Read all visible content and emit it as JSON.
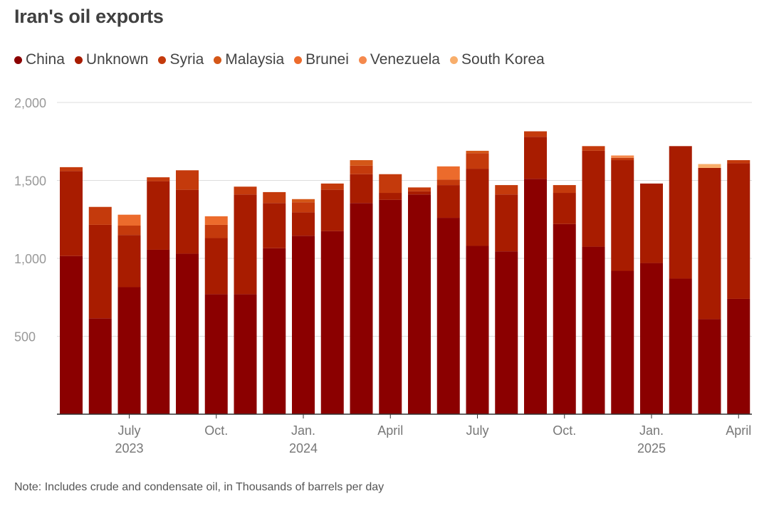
{
  "chart_data": {
    "type": "bar",
    "stacked": true,
    "title": "Iran's oil exports",
    "xlabel": "",
    "ylabel": "",
    "ylim": [
      0,
      2000
    ],
    "yticks": [
      500,
      1000,
      1500,
      2000
    ],
    "ytick_labels": [
      "500",
      "1,000",
      "1,500",
      "2,000"
    ],
    "grid": true,
    "legend_position": "top-left",
    "categories": [
      "2023-05",
      "2023-06",
      "2023-07",
      "2023-08",
      "2023-09",
      "2023-10",
      "2023-11",
      "2023-12",
      "2024-01",
      "2024-02",
      "2024-03",
      "2024-04",
      "2024-05",
      "2024-06",
      "2024-07",
      "2024-08",
      "2024-09",
      "2024-10",
      "2024-11",
      "2024-12",
      "2025-01",
      "2025-02",
      "2025-03",
      "2025-04"
    ],
    "x_tick_labels": [
      {
        "category_index": 2,
        "label": "July",
        "sub": "2023"
      },
      {
        "category_index": 5,
        "label": "Oct.",
        "sub": ""
      },
      {
        "category_index": 8,
        "label": "Jan.",
        "sub": "2024"
      },
      {
        "category_index": 11,
        "label": "April",
        "sub": ""
      },
      {
        "category_index": 14,
        "label": "July",
        "sub": ""
      },
      {
        "category_index": 17,
        "label": "Oct.",
        "sub": ""
      },
      {
        "category_index": 20,
        "label": "Jan.",
        "sub": "2025"
      },
      {
        "category_index": 23,
        "label": "April",
        "sub": ""
      }
    ],
    "series": [
      {
        "name": "China",
        "color": "#8b0000",
        "values": [
          1015,
          615,
          815,
          1055,
          1030,
          770,
          770,
          1065,
          1145,
          1175,
          1355,
          1375,
          1410,
          1260,
          1080,
          1045,
          1510,
          1220,
          1075,
          920,
          970,
          870,
          610,
          740
        ]
      },
      {
        "name": "Unknown",
        "color": "#a81c00",
        "values": [
          545,
          600,
          335,
          440,
          410,
          360,
          640,
          290,
          150,
          265,
          185,
          45,
          20,
          210,
          495,
          365,
          270,
          200,
          615,
          710,
          510,
          850,
          970,
          870
        ]
      },
      {
        "name": "Syria",
        "color": "#c43a0c",
        "values": [
          25,
          115,
          60,
          25,
          125,
          85,
          50,
          70,
          65,
          40,
          55,
          120,
          25,
          35,
          100,
          60,
          35,
          50,
          30,
          15,
          0,
          0,
          0,
          20
        ]
      },
      {
        "name": "Malaysia",
        "color": "#d45718",
        "values": [
          0,
          0,
          0,
          0,
          0,
          0,
          0,
          0,
          20,
          0,
          35,
          0,
          0,
          0,
          15,
          0,
          0,
          0,
          0,
          0,
          0,
          0,
          0,
          0
        ]
      },
      {
        "name": "Brunei",
        "color": "#ec6b2c",
        "values": [
          0,
          0,
          70,
          0,
          0,
          55,
          0,
          0,
          0,
          0,
          0,
          0,
          0,
          85,
          0,
          0,
          0,
          0,
          0,
          0,
          0,
          0,
          0,
          0
        ]
      },
      {
        "name": "Venezuela",
        "color": "#f5894d",
        "values": [
          0,
          0,
          0,
          0,
          0,
          0,
          0,
          0,
          0,
          0,
          0,
          0,
          0,
          0,
          0,
          0,
          0,
          0,
          0,
          15,
          0,
          0,
          0,
          0
        ]
      },
      {
        "name": "South Korea",
        "color": "#f8ae6b",
        "values": [
          0,
          0,
          0,
          0,
          0,
          0,
          0,
          0,
          0,
          0,
          0,
          0,
          0,
          0,
          0,
          0,
          0,
          0,
          0,
          0,
          0,
          0,
          25,
          0
        ]
      }
    ]
  },
  "note": "Note: Includes crude and condensate oil, in Thousands of barrels per day",
  "colors": {
    "axis": "#333333",
    "grid": "#dddddd",
    "tick_text": "#999999"
  }
}
